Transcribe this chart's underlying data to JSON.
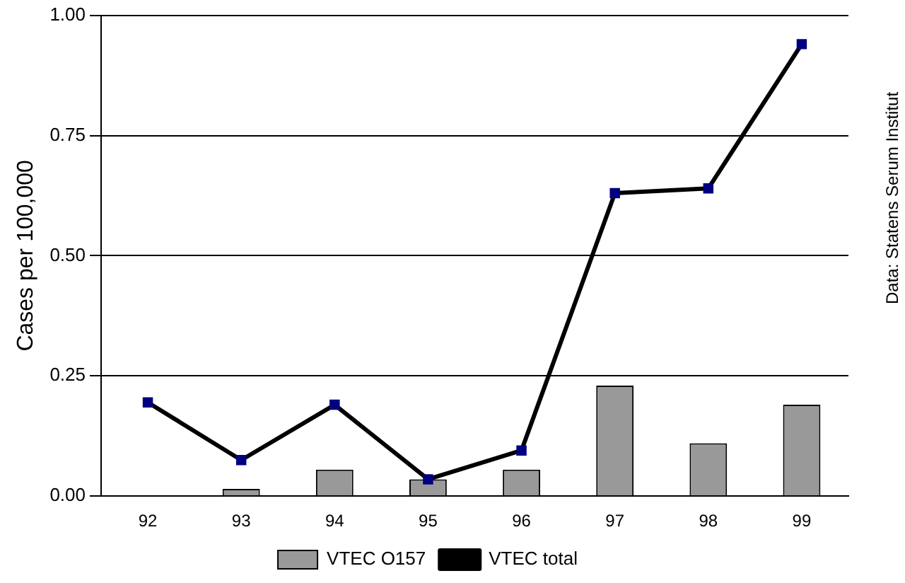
{
  "chart_data": {
    "type": "bar",
    "ylabel": "Cases per 100,000",
    "categories": [
      "92",
      "93",
      "94",
      "95",
      "96",
      "97",
      "98",
      "99"
    ],
    "series": [
      {
        "name": "VTEC O157",
        "color": "#999999",
        "values": [
          0,
          0.015,
          0.055,
          0.035,
          0.055,
          0.23,
          0.11,
          0.19
        ]
      },
      {
        "name": "VTEC total",
        "type": "line",
        "color": "#000000",
        "marker": "square",
        "values": [
          0.195,
          0.075,
          0.19,
          0.035,
          0.095,
          0.63,
          0.64,
          0.94
        ]
      }
    ],
    "ylim": [
      0,
      1
    ],
    "yticks": [
      {
        "value": 0,
        "label": "0.00"
      },
      {
        "value": 0.25,
        "label": "0.25"
      },
      {
        "value": 0.5,
        "label": "0.50"
      },
      {
        "value": 0.75,
        "label": "0.75"
      },
      {
        "value": 1,
        "label": "1.00"
      }
    ],
    "grid": "y",
    "legend": "bottom",
    "annotations": [
      "Data: Statens Serum Institut"
    ]
  }
}
